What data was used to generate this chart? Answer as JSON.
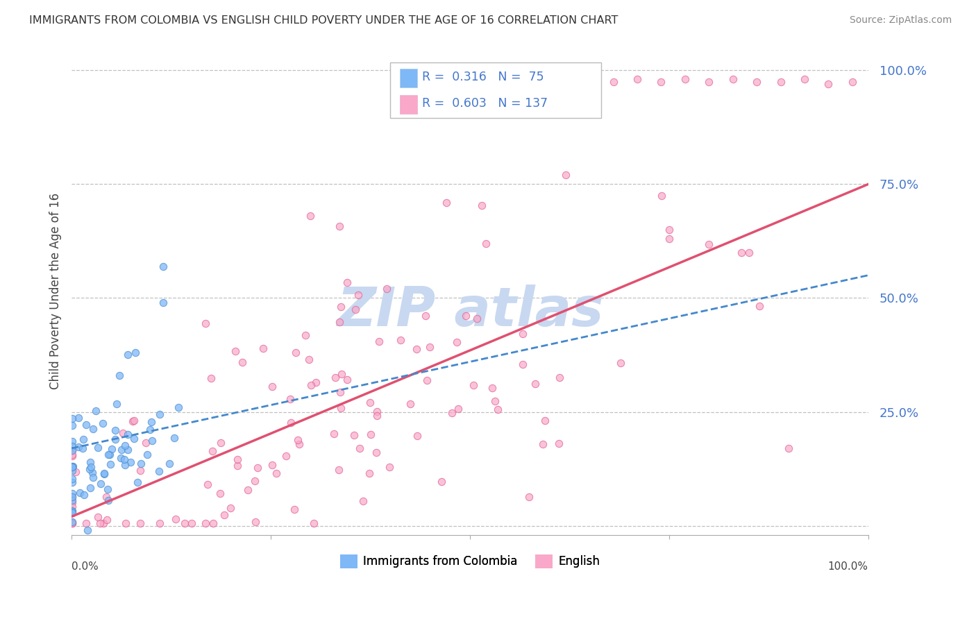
{
  "title": "IMMIGRANTS FROM COLOMBIA VS ENGLISH CHILD POVERTY UNDER THE AGE OF 16 CORRELATION CHART",
  "source": "Source: ZipAtlas.com",
  "ylabel": "Child Poverty Under the Age of 16",
  "series1_color": "#7eb8f7",
  "series2_color": "#f9a8c9",
  "series1_edge_color": "#5090d0",
  "series2_edge_color": "#e06090",
  "line1_color": "#4488cc",
  "line2_color": "#e05070",
  "yticks": [
    "100.0%",
    "75.0%",
    "50.0%",
    "25.0%"
  ],
  "ytick_vals": [
    1.0,
    0.75,
    0.5,
    0.25
  ],
  "xlim": [
    0.0,
    1.0
  ],
  "ylim": [
    -0.02,
    1.05
  ],
  "background_color": "#ffffff",
  "grid_color": "#c0c0c0",
  "tick_label_color": "#4477cc",
  "watermark_color": "#c8d8f0",
  "legend_r1_val": "0.316",
  "legend_n1_val": "75",
  "legend_r2_val": "0.603",
  "legend_n2_val": "137"
}
